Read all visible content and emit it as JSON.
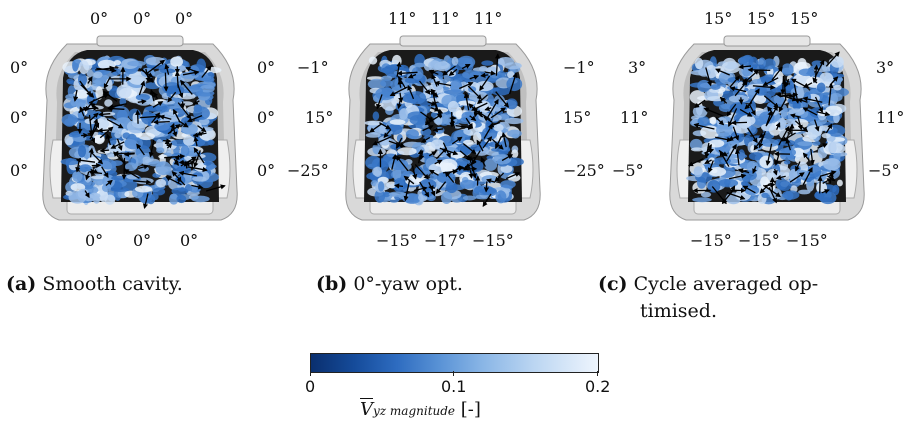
{
  "panels": [
    {
      "id": "a",
      "caption_letter": "(a)",
      "caption_text": "Smooth cavity.",
      "top_angles": [
        "0°",
        "0°",
        "0°"
      ],
      "bottom_angles": [
        "0°",
        "0°",
        "0°"
      ],
      "left_angles": [
        "0°",
        "0°",
        "0°"
      ],
      "right_angles": [
        "0°",
        "0°",
        "0°"
      ]
    },
    {
      "id": "b",
      "caption_letter": "(b)",
      "caption_text": "0°-yaw opt.",
      "top_angles": [
        "11°",
        "11°",
        "11°"
      ],
      "bottom_angles": [
        "−15°",
        "−17°",
        "−15°"
      ],
      "left_angles": [
        "−1°",
        "15°",
        "−25°"
      ],
      "right_angles": [
        "−1°",
        "15°",
        "−25°"
      ]
    },
    {
      "id": "c",
      "caption_letter": "(c)",
      "caption_text_line1": "Cycle averaged op-",
      "caption_text_line2": "timised.",
      "top_angles": [
        "15°",
        "15°",
        "15°"
      ],
      "bottom_angles": [
        "−15°",
        "−15°",
        "−15°"
      ],
      "left_angles": [
        "3°",
        "11°",
        "−5°"
      ],
      "right_angles": [
        "3°",
        "11°",
        "−5°"
      ]
    }
  ],
  "colorbar": {
    "tick_labels": [
      "0",
      "0.1",
      "0.2"
    ],
    "label_main": "V",
    "label_sub": "yz magnitude",
    "label_unit": "[-]",
    "colors": [
      "#0a2f6e",
      "#2e6cc0",
      "#8ab6e6",
      "#eef5fd"
    ]
  }
}
